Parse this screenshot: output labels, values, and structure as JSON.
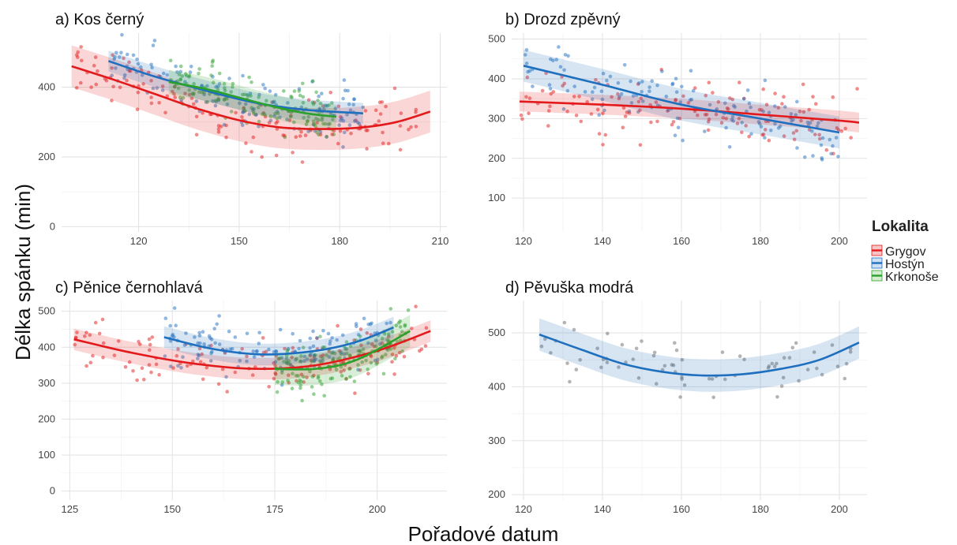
{
  "figure": {
    "xlabel": "Pořadové datum",
    "ylabel": "Délka spánku (min)"
  },
  "legend": {
    "title": "Lokalita",
    "items": [
      {
        "label": "Grygov",
        "color": "#e31a1c"
      },
      {
        "label": "Hostýn",
        "color": "#1f6fbf"
      },
      {
        "label": "Krkonoše",
        "color": "#2ca02c"
      }
    ]
  },
  "chart_data": [
    {
      "type": "scatter",
      "title": "a) Kos černý",
      "xticks": [
        120,
        150,
        180,
        210
      ],
      "yticks": [
        0,
        200,
        400
      ],
      "xlim": [
        97,
        212
      ],
      "ylim": [
        -15,
        555
      ],
      "grid": true,
      "series": [
        {
          "name": "Grygov",
          "color": "#e31a1c",
          "trend": [
            [
              100,
              460
            ],
            [
              113,
              420
            ],
            [
              125,
              380
            ],
            [
              137,
              340
            ],
            [
              150,
              305
            ],
            [
              162,
              285
            ],
            [
              175,
              280
            ],
            [
              187,
              285
            ],
            [
              197,
              300
            ],
            [
              207,
              330
            ]
          ],
          "band": 60
        },
        {
          "name": "Hostýn",
          "color": "#1f6fbf",
          "trend": [
            [
              111,
              475
            ],
            [
              125,
              430
            ],
            [
              140,
              390
            ],
            [
              155,
              355
            ],
            [
              170,
              335
            ],
            [
              187,
              325
            ]
          ],
          "band": 30
        },
        {
          "name": "Krkonoše",
          "color": "#2ca02c",
          "trend": [
            [
              129,
              415
            ],
            [
              140,
              395
            ],
            [
              150,
              370
            ],
            [
              160,
              345
            ],
            [
              170,
              325
            ],
            [
              179,
              315
            ]
          ],
          "band": 35
        }
      ]
    },
    {
      "type": "scatter",
      "title": "b) Drozd zpěvný",
      "xticks": [
        120,
        140,
        160,
        180,
        200
      ],
      "yticks": [
        100,
        200,
        300,
        400,
        500
      ],
      "xlim": [
        117,
        207
      ],
      "ylim": [
        15,
        515
      ],
      "grid": true,
      "series": [
        {
          "name": "Grygov",
          "color": "#e31a1c",
          "trend": [
            [
              119,
              343
            ],
            [
              140,
              335
            ],
            [
              160,
              325
            ],
            [
              180,
              310
            ],
            [
              200,
              295
            ],
            [
              205,
              290
            ]
          ],
          "band": 25
        },
        {
          "name": "Hostýn",
          "color": "#1f6fbf",
          "trend": [
            [
              120,
              433
            ],
            [
              140,
              385
            ],
            [
              160,
              335
            ],
            [
              180,
              300
            ],
            [
              200,
              265
            ]
          ],
          "band": 40
        }
      ]
    },
    {
      "type": "scatter",
      "title": "c) Pěnice černohlavá",
      "xticks": [
        125,
        150,
        175,
        200
      ],
      "yticks": [
        0,
        100,
        200,
        300,
        400,
        500
      ],
      "xlim": [
        123,
        217
      ],
      "ylim": [
        -25,
        530
      ],
      "grid": true,
      "series": [
        {
          "name": "Grygov",
          "color": "#e31a1c",
          "trend": [
            [
              126,
              422
            ],
            [
              140,
              385
            ],
            [
              155,
              355
            ],
            [
              170,
              340
            ],
            [
              185,
              350
            ],
            [
              200,
              390
            ],
            [
              213,
              445
            ]
          ],
          "band": 30
        },
        {
          "name": "Hostýn",
          "color": "#1f6fbf",
          "trend": [
            [
              148,
              428
            ],
            [
              160,
              395
            ],
            [
              172,
              380
            ],
            [
              185,
              390
            ],
            [
              195,
              415
            ],
            [
              204,
              455
            ]
          ],
          "band": 30
        },
        {
          "name": "Krkonoše",
          "color": "#2ca02c",
          "trend": [
            [
              175,
              340
            ],
            [
              185,
              340
            ],
            [
              195,
              365
            ],
            [
              208,
              445
            ]
          ],
          "band": 45
        }
      ]
    },
    {
      "type": "scatter",
      "title": "d) Pěvuška modrá",
      "xticks": [
        120,
        140,
        160,
        180,
        200
      ],
      "yticks": [
        200,
        300,
        400,
        500
      ],
      "xlim": [
        117,
        207
      ],
      "ylim": [
        190,
        560
      ],
      "grid": true,
      "series": [
        {
          "name": "",
          "color": "#1f6fbf",
          "trend": [
            [
              124,
              497
            ],
            [
              135,
              468
            ],
            [
              145,
              443
            ],
            [
              155,
              428
            ],
            [
              165,
              421
            ],
            [
              175,
              423
            ],
            [
              185,
              433
            ],
            [
              195,
              450
            ],
            [
              205,
              482
            ]
          ],
          "band": 30
        }
      ]
    }
  ]
}
